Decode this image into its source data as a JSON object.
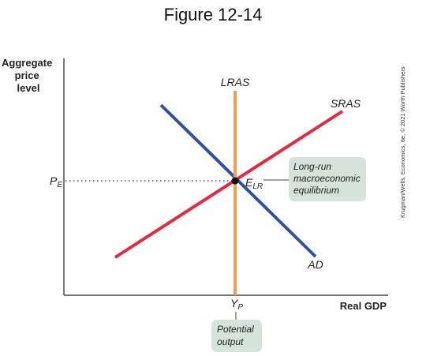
{
  "title": "Figure 12-14",
  "axes": {
    "y_label": [
      "Aggregate",
      "price",
      "level"
    ],
    "x_label": "Real GDP"
  },
  "curves": {
    "lras": "LRAS",
    "sras": "SRAS",
    "ad": "AD"
  },
  "equilibrium": {
    "price_main": "P",
    "price_sub": "E",
    "point_main": "E",
    "point_sub": "LR",
    "output_main": "Y",
    "output_sub": "P"
  },
  "callouts": {
    "equilibrium": [
      "Long-run",
      "macroeconomic",
      "equilibrium"
    ],
    "potential": [
      "Potential",
      "output"
    ]
  },
  "credit": "Krugman/Wells, Economics, 6e, © 2021 Worth Publishers",
  "colors": {
    "lras": "#f0a050",
    "sras": "#e8283c",
    "ad": "#2f4fa8",
    "callout_bg": "#d4e4dc",
    "axis": "#222222"
  }
}
